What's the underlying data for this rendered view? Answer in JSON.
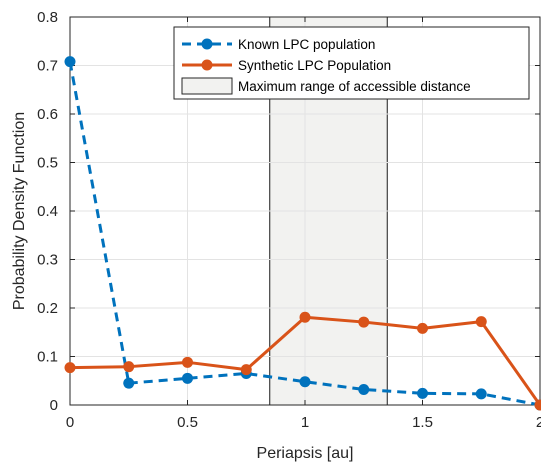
{
  "chart_data": {
    "type": "line",
    "xlabel": "Periapsis [au]",
    "ylabel": "Probability Density Function",
    "xlim": [
      0,
      2
    ],
    "ylim": [
      0,
      0.8
    ],
    "x_ticks": [
      0,
      0.5,
      1,
      1.5,
      2
    ],
    "x_tick_labels": [
      "0",
      "0.5",
      "1",
      "1.5",
      "2"
    ],
    "y_ticks": [
      0,
      0.1,
      0.2,
      0.3,
      0.4,
      0.5,
      0.6,
      0.7,
      0.8
    ],
    "y_tick_labels": [
      "0",
      "0.1",
      "0.2",
      "0.3",
      "0.4",
      "0.5",
      "0.6",
      "0.7",
      "0.8"
    ],
    "grid": true,
    "legend_position": "top-right",
    "series": [
      {
        "name": "Known LPC population",
        "color": "#0072BD",
        "line_style": "dashed",
        "segments": [
          {
            "x": [
              0,
              0.25
            ],
            "y": [
              0.708,
              0.045
            ]
          },
          {
            "x": [
              0.25,
              0.5,
              0.75,
              1.0,
              1.25,
              1.5,
              1.75,
              2.0
            ],
            "y": [
              0.045,
              0.055,
              0.065,
              0.048,
              0.032,
              0.024,
              0.023,
              0.0
            ]
          }
        ],
        "markers_x": [
          0,
          0.25,
          0.5,
          0.75,
          1.0,
          1.25,
          1.5,
          1.75,
          2.0
        ],
        "markers_y": [
          0.708,
          0.045,
          0.055,
          0.065,
          0.048,
          0.032,
          0.024,
          0.023,
          0.0
        ]
      },
      {
        "name": "Synthetic LPC Population",
        "color": "#D95319",
        "line_style": "solid",
        "x": [
          0,
          0.25,
          0.5,
          0.75,
          1.0,
          1.25,
          1.5,
          1.75,
          2.0
        ],
        "y": [
          0.077,
          0.079,
          0.088,
          0.073,
          0.181,
          0.171,
          0.158,
          0.172,
          0.0
        ]
      }
    ],
    "shaded_region": {
      "name": "Maximum range of accessible distance",
      "x_range": [
        0.85,
        1.35
      ],
      "color": "#F2F2F0"
    }
  }
}
